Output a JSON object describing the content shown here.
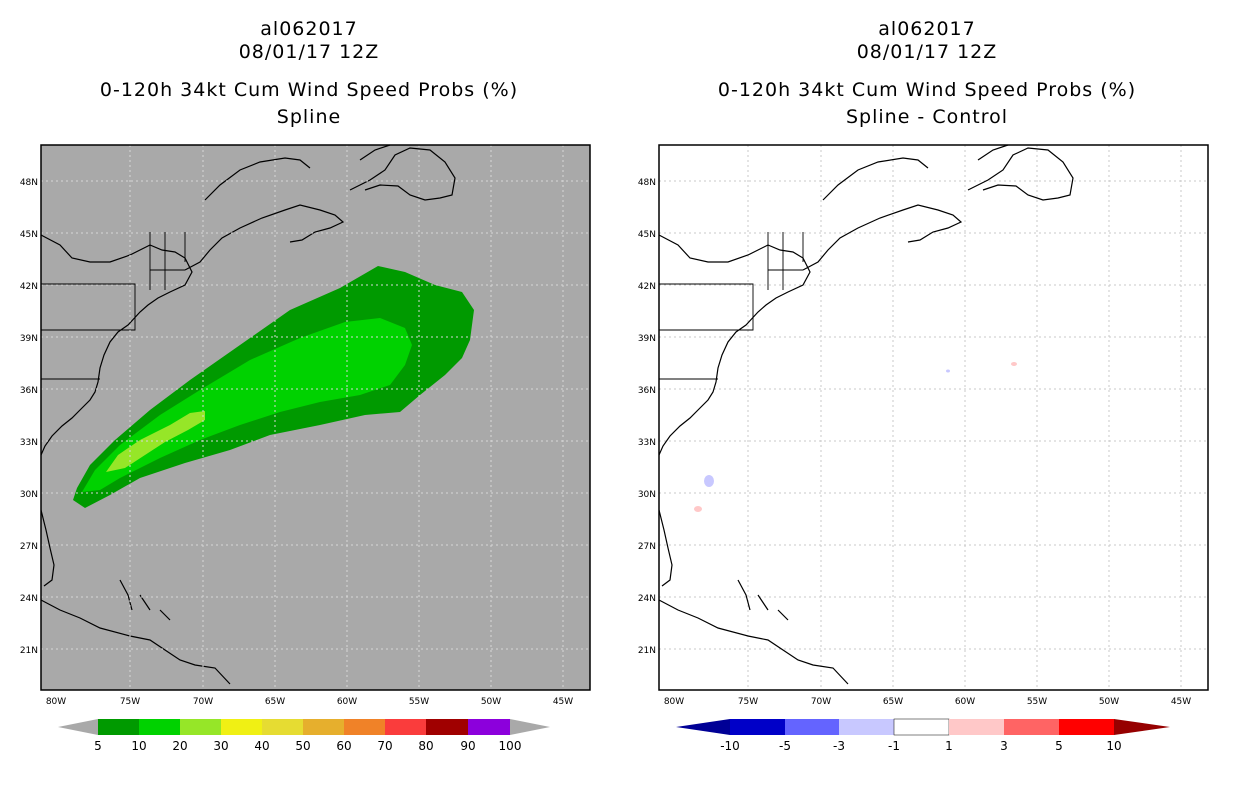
{
  "left_panel": {
    "storm_id": "al062017",
    "datetime": "08/01/17 12Z",
    "product": "0-120h 34kt Cum Wind Speed Probs (%)",
    "subtitle": "Spline",
    "background_color": "#a9a9a9",
    "lat_labels": [
      "48N",
      "45N",
      "42N",
      "39N",
      "36N",
      "33N",
      "30N",
      "27N",
      "24N",
      "21N"
    ],
    "lon_labels": [
      "80W",
      "75W",
      "70W",
      "65W",
      "60W",
      "55W",
      "50W",
      "45W"
    ],
    "colorbar": {
      "colors": [
        "#009a00",
        "#00d200",
        "#96e628",
        "#f0f014",
        "#e6dc32",
        "#e6af2d",
        "#f08228",
        "#fa3c3c",
        "#a00000",
        "#8c00dc"
      ],
      "labels": [
        "5",
        "10",
        "20",
        "30",
        "40",
        "50",
        "60",
        "70",
        "80",
        "90",
        "100"
      ]
    }
  },
  "right_panel": {
    "storm_id": "al062017",
    "datetime": "08/01/17 12Z",
    "product": "0-120h 34kt Cum Wind Speed Probs (%)",
    "subtitle": "Spline - Control",
    "background_color": "#ffffff",
    "lat_labels": [
      "48N",
      "45N",
      "42N",
      "39N",
      "36N",
      "33N",
      "30N",
      "27N",
      "24N",
      "21N"
    ],
    "lon_labels": [
      "80W",
      "75W",
      "70W",
      "65W",
      "60W",
      "55W",
      "50W",
      "45W"
    ],
    "colorbar": {
      "colors": [
        "#0000c8",
        "#6464ff",
        "#c8c8ff",
        "#ffffff",
        "#ffc8c8",
        "#ff6464",
        "#ff0000"
      ],
      "end_colors": [
        "#000096",
        "#960000"
      ],
      "labels": [
        "-10",
        "-5",
        "-3",
        "-1",
        "1",
        "3",
        "5",
        "10"
      ]
    }
  }
}
